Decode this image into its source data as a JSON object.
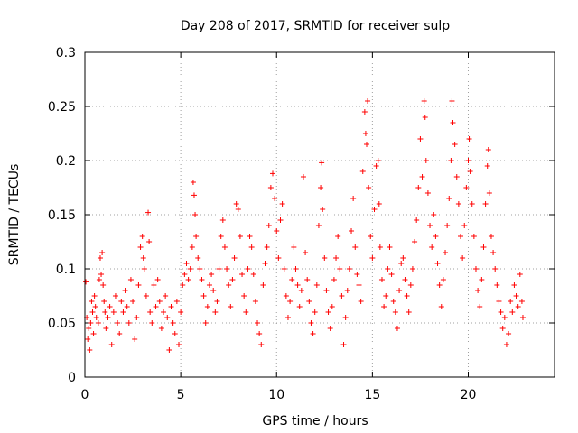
{
  "chart_data": {
    "type": "scatter",
    "title": "Day 208 of 2017, SRMTID for receiver sulp",
    "xlabel": "GPS time / hours",
    "ylabel": "SRMTID / TECUs",
    "xlim": [
      0,
      24.5
    ],
    "ylim": [
      0,
      0.3
    ],
    "xticks": [
      0,
      5,
      10,
      15,
      20
    ],
    "xtick_labels": [
      "0",
      "5",
      "10",
      "15",
      "20"
    ],
    "yticks": [
      0,
      0.05,
      0.1,
      0.15,
      0.2,
      0.25,
      0.3
    ],
    "ytick_labels": [
      "0",
      "0.05",
      "0.1",
      "0.15",
      "0.2",
      "0.25",
      "0.3"
    ],
    "grid": true,
    "marker": "+",
    "color": "#ff0000",
    "series": [
      {
        "name": "SRMTID",
        "points": [
          [
            0.05,
            0.088
          ],
          [
            0.1,
            0.055
          ],
          [
            0.15,
            0.035
          ],
          [
            0.2,
            0.045
          ],
          [
            0.25,
            0.025
          ],
          [
            0.3,
            0.05
          ],
          [
            0.35,
            0.07
          ],
          [
            0.4,
            0.06
          ],
          [
            0.45,
            0.04
          ],
          [
            0.5,
            0.075
          ],
          [
            0.55,
            0.065
          ],
          [
            0.6,
            0.055
          ],
          [
            0.7,
            0.05
          ],
          [
            0.75,
            0.09
          ],
          [
            0.8,
            0.11
          ],
          [
            0.85,
            0.095
          ],
          [
            0.9,
            0.115
          ],
          [
            0.95,
            0.085
          ],
          [
            1.0,
            0.07
          ],
          [
            1.05,
            0.06
          ],
          [
            1.1,
            0.045
          ],
          [
            1.2,
            0.055
          ],
          [
            1.3,
            0.065
          ],
          [
            1.4,
            0.03
          ],
          [
            1.5,
            0.06
          ],
          [
            1.6,
            0.075
          ],
          [
            1.7,
            0.05
          ],
          [
            1.8,
            0.04
          ],
          [
            1.9,
            0.07
          ],
          [
            2.0,
            0.06
          ],
          [
            2.1,
            0.08
          ],
          [
            2.2,
            0.065
          ],
          [
            2.3,
            0.05
          ],
          [
            2.4,
            0.09
          ],
          [
            2.5,
            0.07
          ],
          [
            2.6,
            0.035
          ],
          [
            2.7,
            0.055
          ],
          [
            2.8,
            0.085
          ],
          [
            2.9,
            0.12
          ],
          [
            3.0,
            0.13
          ],
          [
            3.05,
            0.11
          ],
          [
            3.1,
            0.1
          ],
          [
            3.2,
            0.075
          ],
          [
            3.3,
            0.152
          ],
          [
            3.35,
            0.125
          ],
          [
            3.4,
            0.06
          ],
          [
            3.5,
            0.05
          ],
          [
            3.6,
            0.085
          ],
          [
            3.7,
            0.065
          ],
          [
            3.8,
            0.09
          ],
          [
            3.9,
            0.07
          ],
          [
            4.0,
            0.045
          ],
          [
            4.1,
            0.06
          ],
          [
            4.2,
            0.075
          ],
          [
            4.3,
            0.055
          ],
          [
            4.4,
            0.025
          ],
          [
            4.5,
            0.065
          ],
          [
            4.6,
            0.05
          ],
          [
            4.7,
            0.04
          ],
          [
            4.8,
            0.07
          ],
          [
            4.9,
            0.03
          ],
          [
            5.0,
            0.06
          ],
          [
            5.1,
            0.085
          ],
          [
            5.2,
            0.095
          ],
          [
            5.3,
            0.105
          ],
          [
            5.4,
            0.09
          ],
          [
            5.5,
            0.1
          ],
          [
            5.6,
            0.12
          ],
          [
            5.65,
            0.18
          ],
          [
            5.7,
            0.168
          ],
          [
            5.75,
            0.15
          ],
          [
            5.8,
            0.13
          ],
          [
            5.9,
            0.11
          ],
          [
            6.0,
            0.1
          ],
          [
            6.1,
            0.09
          ],
          [
            6.2,
            0.075
          ],
          [
            6.3,
            0.05
          ],
          [
            6.4,
            0.065
          ],
          [
            6.5,
            0.085
          ],
          [
            6.6,
            0.095
          ],
          [
            6.7,
            0.08
          ],
          [
            6.8,
            0.06
          ],
          [
            6.9,
            0.07
          ],
          [
            7.0,
            0.1
          ],
          [
            7.1,
            0.13
          ],
          [
            7.2,
            0.145
          ],
          [
            7.3,
            0.12
          ],
          [
            7.4,
            0.1
          ],
          [
            7.5,
            0.085
          ],
          [
            7.6,
            0.065
          ],
          [
            7.7,
            0.09
          ],
          [
            7.8,
            0.11
          ],
          [
            7.9,
            0.16
          ],
          [
            8.0,
            0.155
          ],
          [
            8.1,
            0.13
          ],
          [
            8.2,
            0.095
          ],
          [
            8.3,
            0.075
          ],
          [
            8.4,
            0.06
          ],
          [
            8.5,
            0.1
          ],
          [
            8.6,
            0.13
          ],
          [
            8.7,
            0.12
          ],
          [
            8.8,
            0.095
          ],
          [
            8.9,
            0.07
          ],
          [
            9.0,
            0.05
          ],
          [
            9.1,
            0.04
          ],
          [
            9.2,
            0.03
          ],
          [
            9.3,
            0.085
          ],
          [
            9.4,
            0.105
          ],
          [
            9.5,
            0.12
          ],
          [
            9.6,
            0.14
          ],
          [
            9.7,
            0.175
          ],
          [
            9.8,
            0.188
          ],
          [
            9.9,
            0.165
          ],
          [
            10.0,
            0.135
          ],
          [
            10.1,
            0.11
          ],
          [
            10.2,
            0.145
          ],
          [
            10.3,
            0.16
          ],
          [
            10.4,
            0.1
          ],
          [
            10.5,
            0.075
          ],
          [
            10.6,
            0.055
          ],
          [
            10.7,
            0.07
          ],
          [
            10.8,
            0.09
          ],
          [
            10.9,
            0.12
          ],
          [
            11.0,
            0.1
          ],
          [
            11.1,
            0.085
          ],
          [
            11.2,
            0.065
          ],
          [
            11.3,
            0.08
          ],
          [
            11.4,
            0.185
          ],
          [
            11.5,
            0.115
          ],
          [
            11.6,
            0.09
          ],
          [
            11.7,
            0.07
          ],
          [
            11.8,
            0.05
          ],
          [
            11.9,
            0.04
          ],
          [
            12.0,
            0.06
          ],
          [
            12.1,
            0.085
          ],
          [
            12.2,
            0.14
          ],
          [
            12.3,
            0.175
          ],
          [
            12.35,
            0.198
          ],
          [
            12.4,
            0.155
          ],
          [
            12.5,
            0.11
          ],
          [
            12.6,
            0.08
          ],
          [
            12.7,
            0.06
          ],
          [
            12.8,
            0.045
          ],
          [
            12.9,
            0.065
          ],
          [
            13.0,
            0.09
          ],
          [
            13.1,
            0.11
          ],
          [
            13.2,
            0.13
          ],
          [
            13.3,
            0.1
          ],
          [
            13.4,
            0.075
          ],
          [
            13.5,
            0.03
          ],
          [
            13.6,
            0.055
          ],
          [
            13.7,
            0.08
          ],
          [
            13.8,
            0.1
          ],
          [
            13.9,
            0.135
          ],
          [
            14.0,
            0.165
          ],
          [
            14.1,
            0.12
          ],
          [
            14.2,
            0.095
          ],
          [
            14.3,
            0.085
          ],
          [
            14.4,
            0.07
          ],
          [
            14.5,
            0.19
          ],
          [
            14.6,
            0.245
          ],
          [
            14.65,
            0.225
          ],
          [
            14.7,
            0.215
          ],
          [
            14.75,
            0.255
          ],
          [
            14.8,
            0.175
          ],
          [
            14.9,
            0.13
          ],
          [
            15.0,
            0.11
          ],
          [
            15.1,
            0.155
          ],
          [
            15.2,
            0.195
          ],
          [
            15.3,
            0.2
          ],
          [
            15.35,
            0.16
          ],
          [
            15.4,
            0.12
          ],
          [
            15.5,
            0.09
          ],
          [
            15.6,
            0.065
          ],
          [
            15.7,
            0.075
          ],
          [
            15.8,
            0.1
          ],
          [
            15.9,
            0.12
          ],
          [
            16.0,
            0.095
          ],
          [
            16.1,
            0.07
          ],
          [
            16.2,
            0.06
          ],
          [
            16.3,
            0.045
          ],
          [
            16.4,
            0.08
          ],
          [
            16.5,
            0.105
          ],
          [
            16.6,
            0.11
          ],
          [
            16.7,
            0.09
          ],
          [
            16.8,
            0.075
          ],
          [
            16.9,
            0.06
          ],
          [
            17.0,
            0.085
          ],
          [
            17.1,
            0.1
          ],
          [
            17.2,
            0.125
          ],
          [
            17.3,
            0.145
          ],
          [
            17.4,
            0.175
          ],
          [
            17.5,
            0.22
          ],
          [
            17.6,
            0.185
          ],
          [
            17.7,
            0.255
          ],
          [
            17.75,
            0.24
          ],
          [
            17.8,
            0.2
          ],
          [
            17.9,
            0.17
          ],
          [
            18.0,
            0.14
          ],
          [
            18.1,
            0.12
          ],
          [
            18.2,
            0.15
          ],
          [
            18.3,
            0.13
          ],
          [
            18.4,
            0.105
          ],
          [
            18.5,
            0.085
          ],
          [
            18.6,
            0.065
          ],
          [
            18.7,
            0.09
          ],
          [
            18.8,
            0.115
          ],
          [
            18.9,
            0.14
          ],
          [
            19.0,
            0.165
          ],
          [
            19.1,
            0.2
          ],
          [
            19.15,
            0.255
          ],
          [
            19.2,
            0.235
          ],
          [
            19.3,
            0.215
          ],
          [
            19.4,
            0.185
          ],
          [
            19.5,
            0.16
          ],
          [
            19.6,
            0.13
          ],
          [
            19.7,
            0.11
          ],
          [
            19.8,
            0.14
          ],
          [
            19.9,
            0.175
          ],
          [
            20.0,
            0.2
          ],
          [
            20.05,
            0.22
          ],
          [
            20.1,
            0.19
          ],
          [
            20.2,
            0.16
          ],
          [
            20.3,
            0.13
          ],
          [
            20.4,
            0.1
          ],
          [
            20.5,
            0.08
          ],
          [
            20.6,
            0.065
          ],
          [
            20.7,
            0.09
          ],
          [
            20.8,
            0.12
          ],
          [
            20.9,
            0.16
          ],
          [
            21.0,
            0.195
          ],
          [
            21.05,
            0.21
          ],
          [
            21.1,
            0.17
          ],
          [
            21.2,
            0.13
          ],
          [
            21.3,
            0.115
          ],
          [
            21.4,
            0.1
          ],
          [
            21.5,
            0.085
          ],
          [
            21.6,
            0.07
          ],
          [
            21.7,
            0.06
          ],
          [
            21.8,
            0.045
          ],
          [
            21.9,
            0.055
          ],
          [
            22.0,
            0.03
          ],
          [
            22.1,
            0.04
          ],
          [
            22.2,
            0.07
          ],
          [
            22.3,
            0.06
          ],
          [
            22.4,
            0.085
          ],
          [
            22.5,
            0.075
          ],
          [
            22.6,
            0.065
          ],
          [
            22.7,
            0.095
          ],
          [
            22.8,
            0.07
          ],
          [
            22.85,
            0.055
          ]
        ]
      }
    ]
  }
}
